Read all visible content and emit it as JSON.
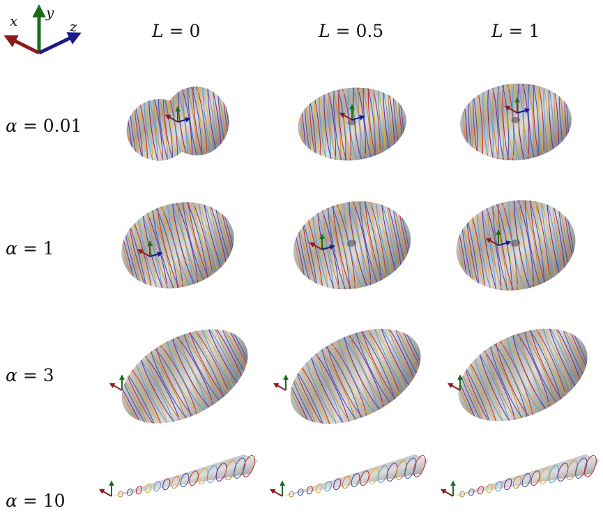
{
  "axes_icon": {
    "x": "x",
    "y": "y",
    "z": "z",
    "colors": {
      "x": "#8b1a1a",
      "y": "#1a6e1a",
      "z": "#1a1a8b"
    }
  },
  "columns": [
    {
      "var": "L",
      "value": "0"
    },
    {
      "var": "L",
      "value": "0.5"
    },
    {
      "var": "L",
      "value": "1"
    }
  ],
  "rows": [
    {
      "var": "α",
      "value": "0.01"
    },
    {
      "var": "α",
      "value": "1"
    },
    {
      "var": "α",
      "value": "3"
    },
    {
      "var": "α",
      "value": "10"
    }
  ],
  "curve_colors": [
    "#7a2a8a",
    "#d08a2a",
    "#3a5ab0",
    "#c03030",
    "#e0b030",
    "#50a0d0"
  ]
}
